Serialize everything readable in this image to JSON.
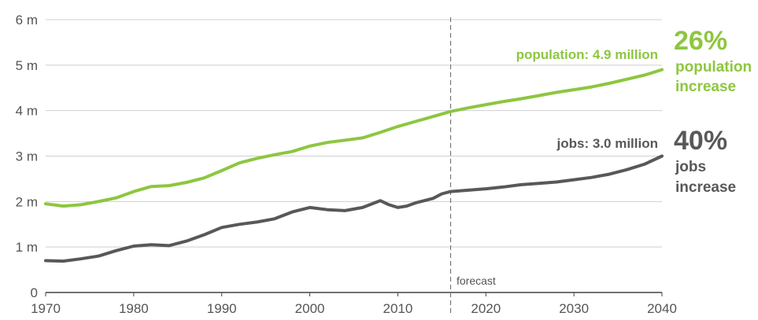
{
  "chart_data": {
    "type": "line",
    "x_ticks": [
      "1970",
      "1980",
      "1990",
      "2000",
      "2010",
      "2020",
      "2030",
      "2040"
    ],
    "y_ticks": [
      "0",
      "1 m",
      "2 m",
      "3 m",
      "4 m",
      "5 m",
      "6 m"
    ],
    "xlim": [
      1970,
      2040
    ],
    "ylim": [
      0,
      6
    ],
    "grid": "horizontal",
    "forecast_year": 2016,
    "forecast_label": "forecast",
    "series": [
      {
        "key": "population",
        "label": "population: 4.9 million",
        "color": "#8dc63f",
        "points": [
          [
            1970,
            1.95
          ],
          [
            1972,
            1.9
          ],
          [
            1974,
            1.93
          ],
          [
            1976,
            2.0
          ],
          [
            1978,
            2.08
          ],
          [
            1980,
            2.22
          ],
          [
            1982,
            2.33
          ],
          [
            1984,
            2.35
          ],
          [
            1986,
            2.42
          ],
          [
            1988,
            2.52
          ],
          [
            1990,
            2.68
          ],
          [
            1992,
            2.85
          ],
          [
            1994,
            2.95
          ],
          [
            1996,
            3.03
          ],
          [
            1998,
            3.1
          ],
          [
            2000,
            3.22
          ],
          [
            2002,
            3.3
          ],
          [
            2004,
            3.35
          ],
          [
            2006,
            3.4
          ],
          [
            2008,
            3.52
          ],
          [
            2010,
            3.65
          ],
          [
            2012,
            3.76
          ],
          [
            2014,
            3.87
          ],
          [
            2016,
            3.98
          ],
          [
            2018,
            4.06
          ],
          [
            2020,
            4.13
          ],
          [
            2022,
            4.2
          ],
          [
            2024,
            4.26
          ],
          [
            2026,
            4.33
          ],
          [
            2028,
            4.4
          ],
          [
            2030,
            4.46
          ],
          [
            2032,
            4.52
          ],
          [
            2034,
            4.6
          ],
          [
            2036,
            4.69
          ],
          [
            2038,
            4.78
          ],
          [
            2040,
            4.9
          ]
        ]
      },
      {
        "key": "jobs",
        "label": "jobs: 3.0 million",
        "color": "#58585a",
        "points": [
          [
            1970,
            0.7
          ],
          [
            1972,
            0.69
          ],
          [
            1974,
            0.74
          ],
          [
            1976,
            0.8
          ],
          [
            1978,
            0.92
          ],
          [
            1980,
            1.02
          ],
          [
            1982,
            1.05
          ],
          [
            1984,
            1.03
          ],
          [
            1986,
            1.13
          ],
          [
            1988,
            1.27
          ],
          [
            1990,
            1.43
          ],
          [
            1992,
            1.5
          ],
          [
            1994,
            1.55
          ],
          [
            1996,
            1.62
          ],
          [
            1998,
            1.77
          ],
          [
            2000,
            1.87
          ],
          [
            2002,
            1.82
          ],
          [
            2004,
            1.8
          ],
          [
            2006,
            1.87
          ],
          [
            2008,
            2.02
          ],
          [
            2009,
            1.93
          ],
          [
            2010,
            1.87
          ],
          [
            2011,
            1.9
          ],
          [
            2012,
            1.97
          ],
          [
            2014,
            2.07
          ],
          [
            2015,
            2.17
          ],
          [
            2016,
            2.22
          ],
          [
            2018,
            2.25
          ],
          [
            2020,
            2.28
          ],
          [
            2022,
            2.32
          ],
          [
            2024,
            2.37
          ],
          [
            2026,
            2.4
          ],
          [
            2028,
            2.43
          ],
          [
            2030,
            2.48
          ],
          [
            2032,
            2.53
          ],
          [
            2034,
            2.6
          ],
          [
            2036,
            2.7
          ],
          [
            2038,
            2.82
          ],
          [
            2040,
            3.0
          ]
        ]
      }
    ],
    "annotations": [
      {
        "key": "population",
        "percent": "26%",
        "line1": "population",
        "line2": "increase"
      },
      {
        "key": "jobs",
        "percent": "40%",
        "line1": "jobs",
        "line2": "increase"
      }
    ]
  }
}
